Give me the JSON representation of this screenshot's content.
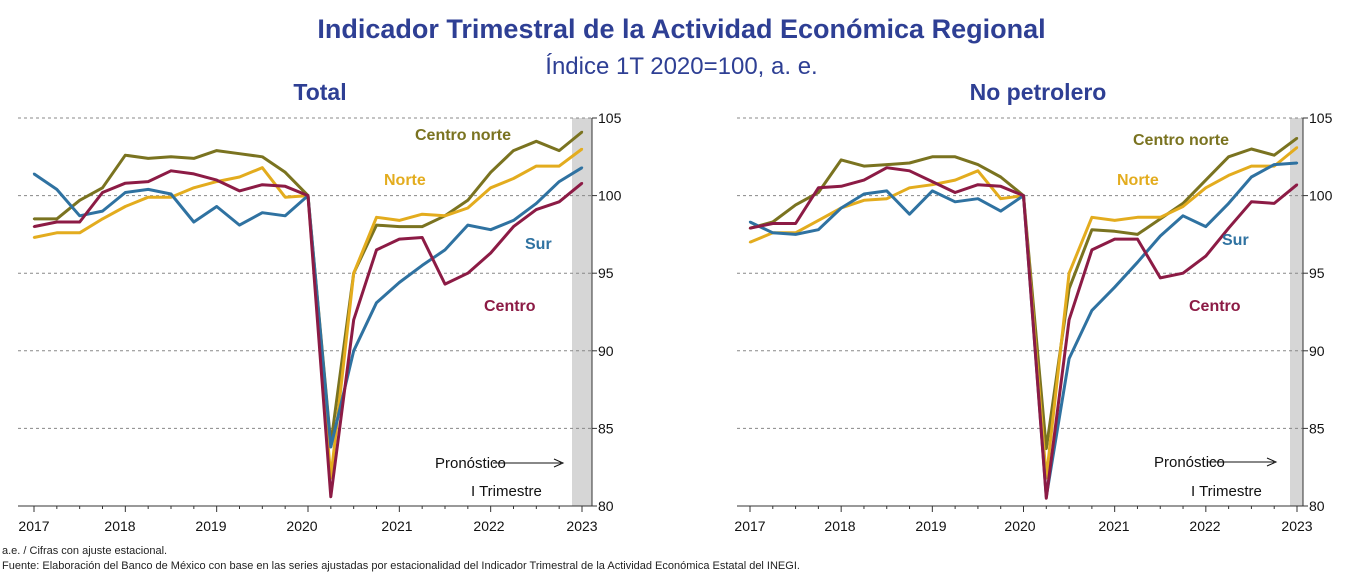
{
  "title": "Indicador Trimestral de la Actividad Económica Regional",
  "subtitle": "Índice 1T 2020=100, a. e.",
  "footnote_1": "a.e. / Cifras con ajuste estacional.",
  "footnote_2": "Fuente: Elaboración del Banco de México con base en las series ajustadas por estacionalidad  del Indicador Trimestral de la Actividad Económica Estatal del INEGI.",
  "colors": {
    "centro_norte": "#7a7320",
    "norte": "#e3ac1e",
    "sur": "#2f72a1",
    "centro": "#8c1b45",
    "title": "#2e3f94",
    "forecast_band": "#d6d6d6"
  },
  "chart_data": [
    {
      "type": "line",
      "title": "Total",
      "x_labels": [
        "2017",
        "2018",
        "2019",
        "2020",
        "2021",
        "2022",
        "2023"
      ],
      "y_ticks": [
        80,
        85,
        90,
        95,
        100,
        105
      ],
      "ylim": [
        80,
        105
      ],
      "grid": true,
      "forecast_annotation": "Pronóstico",
      "forecast_period": "I Trimestre",
      "series": [
        {
          "key": "centro_norte",
          "name": "Centro norte",
          "values": [
            98.5,
            98.5,
            99.7,
            100.5,
            102.6,
            102.4,
            102.5,
            102.4,
            102.9,
            102.7,
            102.5,
            101.5,
            100.0,
            84.0,
            95.0,
            98.1,
            98.0,
            98.0,
            98.7,
            99.7,
            101.5,
            102.9,
            103.5,
            102.9,
            104.1
          ]
        },
        {
          "key": "norte",
          "name": "Norte",
          "values": [
            97.3,
            97.6,
            97.6,
            98.5,
            99.3,
            99.9,
            99.9,
            100.5,
            100.9,
            101.2,
            101.8,
            99.9,
            100.0,
            81.8,
            95.0,
            98.6,
            98.4,
            98.8,
            98.7,
            99.2,
            100.5,
            101.1,
            101.9,
            101.9,
            103.0
          ]
        },
        {
          "key": "sur",
          "name": "Sur",
          "values": [
            101.4,
            100.4,
            98.7,
            99.0,
            100.2,
            100.4,
            100.1,
            98.3,
            99.3,
            98.1,
            98.9,
            98.7,
            100.0,
            83.8,
            90.0,
            93.1,
            94.4,
            95.5,
            96.5,
            98.1,
            97.8,
            98.4,
            99.5,
            100.9,
            101.8
          ]
        },
        {
          "key": "centro",
          "name": "Centro",
          "values": [
            98.0,
            98.3,
            98.3,
            100.2,
            100.8,
            100.9,
            101.6,
            101.4,
            101.0,
            100.3,
            100.7,
            100.6,
            100.0,
            80.6,
            92.0,
            96.5,
            97.2,
            97.3,
            94.3,
            95.0,
            96.3,
            98.0,
            99.1,
            99.6,
            100.8
          ]
        }
      ],
      "labels": {
        "centro_norte": "Centro norte",
        "norte": "Norte",
        "sur": "Sur",
        "centro": "Centro"
      },
      "y_axis_labels": [
        "105",
        "100",
        "95",
        "90",
        "85",
        "80"
      ]
    },
    {
      "type": "line",
      "title": "No petrolero",
      "x_labels": [
        "2017",
        "2018",
        "2019",
        "2020",
        "2021",
        "2022",
        "2023"
      ],
      "y_ticks": [
        80,
        85,
        90,
        95,
        100,
        105
      ],
      "ylim": [
        80,
        105
      ],
      "grid": true,
      "forecast_annotation": "Pronóstico",
      "forecast_period": "I Trimestre",
      "series": [
        {
          "key": "centro_norte",
          "name": "Centro norte",
          "values": [
            97.9,
            98.3,
            99.4,
            100.2,
            102.3,
            101.9,
            102.0,
            102.1,
            102.5,
            102.5,
            102.0,
            101.2,
            100.0,
            83.7,
            94.0,
            97.8,
            97.7,
            97.5,
            98.5,
            99.5,
            101.0,
            102.5,
            103.0,
            102.6,
            103.7
          ]
        },
        {
          "key": "norte",
          "name": "Norte",
          "values": [
            97.0,
            97.6,
            97.6,
            98.4,
            99.2,
            99.7,
            99.8,
            100.5,
            100.7,
            101.0,
            101.6,
            99.8,
            100.0,
            81.8,
            95.0,
            98.6,
            98.4,
            98.6,
            98.6,
            99.3,
            100.5,
            101.3,
            101.9,
            101.9,
            103.1
          ]
        },
        {
          "key": "sur",
          "name": "Sur",
          "values": [
            98.3,
            97.6,
            97.5,
            97.8,
            99.2,
            100.1,
            100.3,
            98.8,
            100.3,
            99.6,
            99.8,
            99.0,
            100.0,
            80.6,
            89.5,
            92.6,
            94.1,
            95.7,
            97.4,
            98.7,
            98.0,
            99.5,
            101.2,
            102.0,
            102.1
          ]
        },
        {
          "key": "centro",
          "name": "Centro",
          "values": [
            97.9,
            98.2,
            98.2,
            100.5,
            100.6,
            101.0,
            101.8,
            101.6,
            100.9,
            100.2,
            100.7,
            100.6,
            100.0,
            80.5,
            92.0,
            96.5,
            97.2,
            97.2,
            94.7,
            95.0,
            96.1,
            97.9,
            99.6,
            99.5,
            100.7
          ]
        }
      ],
      "labels": {
        "centro_norte": "Centro norte",
        "norte": "Norte",
        "sur": "Sur",
        "centro": "Centro"
      },
      "y_axis_labels": [
        "105",
        "100",
        "95",
        "90",
        "85",
        "80"
      ]
    }
  ]
}
